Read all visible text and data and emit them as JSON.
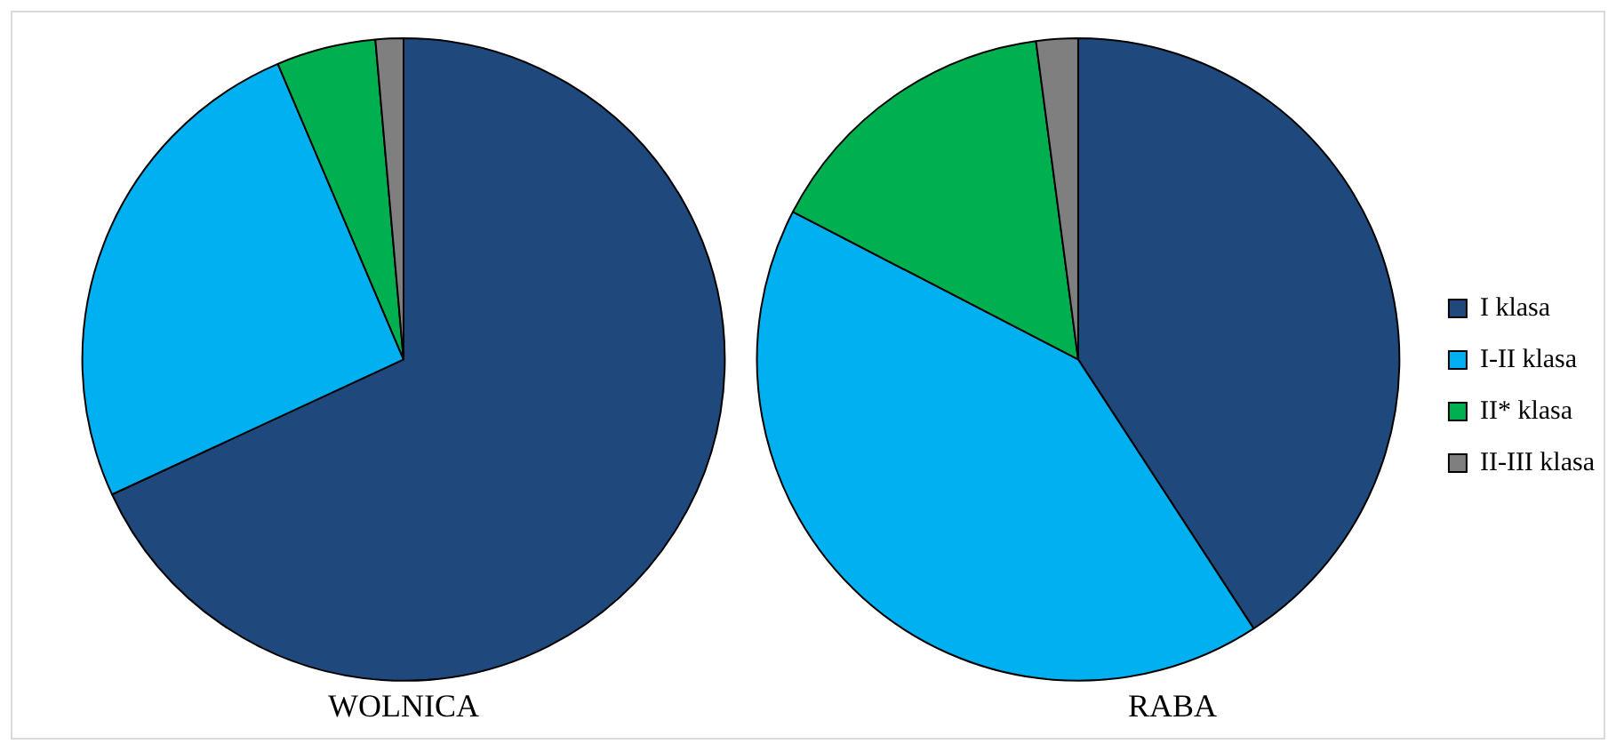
{
  "chart_data": [
    {
      "type": "pie",
      "title": "WOLNICA",
      "categories": [
        null,
        null,
        null,
        null
      ],
      "values": [
        68.1,
        25.5,
        5.0,
        1.4
      ],
      "colors": [
        "#1f497d",
        "#00b0f0",
        "#00b050",
        "#7f7f7f"
      ],
      "legend": false
    },
    {
      "type": "pie",
      "title": "RABA",
      "categories": [
        "I klasa",
        "I-II klasa",
        "II* klasa",
        "II-III klasa"
      ],
      "values": [
        40.8,
        41.8,
        15.3,
        2.1
      ],
      "colors": [
        "#1f497d",
        "#00b0f0",
        "#00b050",
        "#7f7f7f"
      ],
      "legend": "right"
    }
  ]
}
